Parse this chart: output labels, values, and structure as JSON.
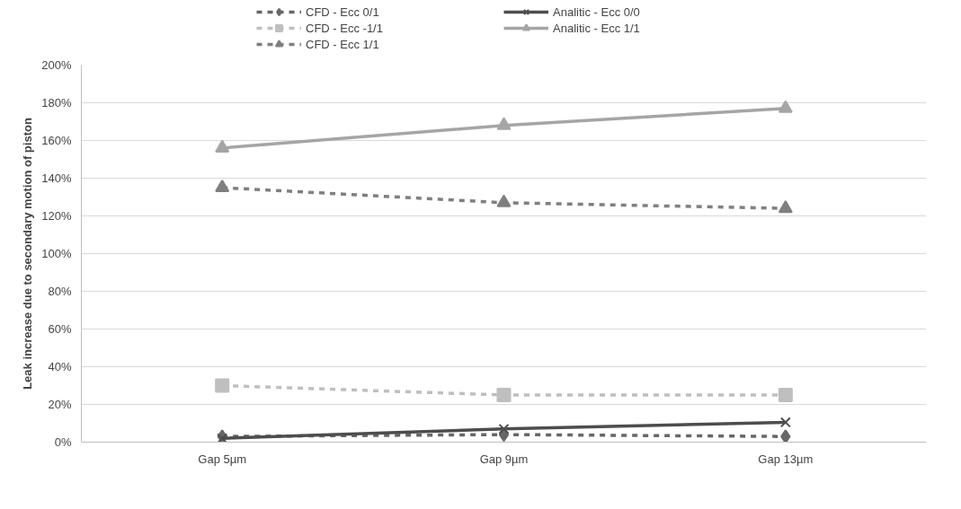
{
  "chart_data": {
    "type": "line",
    "ylabel": "Leak increase due to secondary motion of piston",
    "categories": [
      "Gap 5µm",
      "Gap 9µm",
      "Gap 13µm"
    ],
    "ylim": [
      0,
      200
    ],
    "yticks": [
      {
        "value": 0,
        "label": "0%"
      },
      {
        "value": 20,
        "label": "20%"
      },
      {
        "value": 40,
        "label": "40%"
      },
      {
        "value": 60,
        "label": "60%"
      },
      {
        "value": 80,
        "label": "80%"
      },
      {
        "value": 100,
        "label": "100%"
      },
      {
        "value": 120,
        "label": "120%"
      },
      {
        "value": 140,
        "label": "140%"
      },
      {
        "value": 160,
        "label": "160%"
      },
      {
        "value": 180,
        "label": "180%"
      },
      {
        "value": 200,
        "label": "200%"
      }
    ],
    "grid": "y",
    "legend": "top",
    "series": [
      {
        "name": "CFD - Ecc 0/1",
        "color": "#676767",
        "marker": "diamond",
        "line_style": "dashed",
        "values": [
          3,
          4,
          3
        ]
      },
      {
        "name": "CFD - Ecc -1/1",
        "color": "#bfbfbf",
        "marker": "square",
        "line_style": "dashed",
        "values": [
          30,
          25,
          25
        ]
      },
      {
        "name": "CFD - Ecc 1/1",
        "color": "#7f7f7f",
        "marker": "triangle",
        "line_style": "dashed",
        "values": [
          135,
          127,
          124
        ]
      },
      {
        "name": "Analitic - Ecc 0/0",
        "color": "#4d4d4d",
        "marker": "cross",
        "line_style": "solid",
        "values": [
          2,
          7,
          10.5
        ]
      },
      {
        "name": "Analitic - Ecc 1/1",
        "color": "#a5a5a5",
        "marker": "triangle",
        "line_style": "solid",
        "values": [
          156,
          168,
          177
        ]
      }
    ]
  }
}
